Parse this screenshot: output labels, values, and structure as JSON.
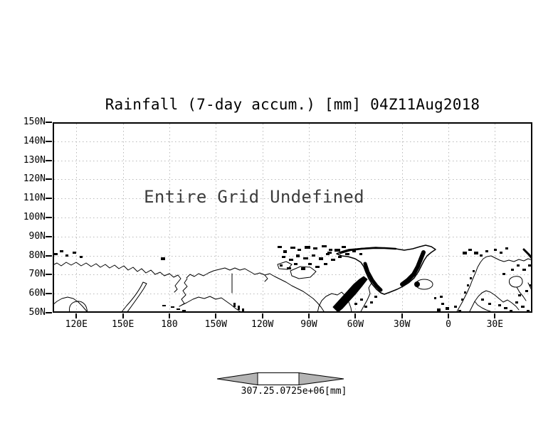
{
  "figure": {
    "title": "Rainfall (7-day accum.) [mm] 04Z11Aug2018",
    "message": "Entire Grid Undefined"
  },
  "axes": {
    "y_ticks": [
      "150N",
      "140N",
      "130N",
      "120N",
      "110N",
      "100N",
      "90N",
      "80N",
      "70N",
      "60N",
      "50N"
    ],
    "x_ticks": [
      "120E",
      "150E",
      "180",
      "150W",
      "120W",
      "90W",
      "60W",
      "30W",
      "0",
      "30E"
    ]
  },
  "colorbar": {
    "label": "307.25.0725e+06[mm]",
    "arrow_fill": "#b4b4b4"
  },
  "colors": {
    "frame": "#000000",
    "grid_dots": "#b9b9b9",
    "coastline": "#000000",
    "background": "#ffffff",
    "message_text": "#3c3c3c"
  },
  "chart_data": {
    "type": "heatmap",
    "title": "Rainfall (7-day accum.) [mm] 04Z11Aug2018",
    "x_tick_labels": [
      "120E",
      "150E",
      "180",
      "150W",
      "120W",
      "90W",
      "60W",
      "30W",
      "0",
      "30E"
    ],
    "y_tick_labels": [
      "150N",
      "140N",
      "130N",
      "120N",
      "110N",
      "100N",
      "90N",
      "80N",
      "70N",
      "60N",
      "50N"
    ],
    "series": [],
    "values": null,
    "annotations": [
      "Entire Grid Undefined"
    ],
    "colorbar_label": "307.25.0725e+06[mm]",
    "grid": true,
    "legend_position": "none",
    "notes_visible_in_pixels": "No rainfall field rendered; basemap coastlines only"
  }
}
